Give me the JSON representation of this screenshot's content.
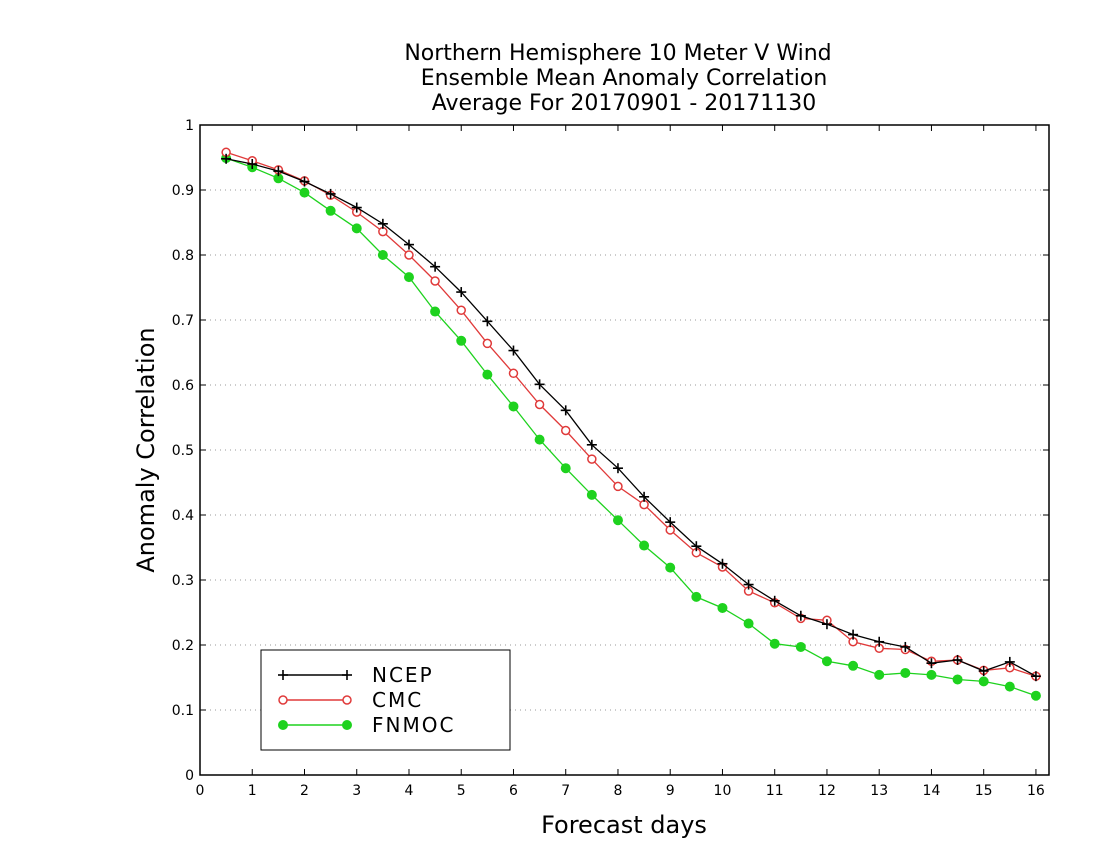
{
  "chart_data": {
    "type": "line",
    "title": [
      "Northern Hemisphere 10 Meter V Wind",
      "Ensemble Mean Anomaly Correlation",
      "Average For 20170901 - 20171130"
    ],
    "xlabel": "Forecast days",
    "ylabel": "Anomaly Correlation",
    "xlim": [
      0,
      16.25
    ],
    "ylim": [
      0,
      1
    ],
    "xticks": [
      0,
      1,
      2,
      3,
      4,
      5,
      6,
      7,
      8,
      9,
      10,
      11,
      12,
      13,
      14,
      15,
      16
    ],
    "yticks": [
      0,
      0.1,
      0.2,
      0.3,
      0.4,
      0.5,
      0.6,
      0.7,
      0.8,
      0.9,
      1
    ],
    "ytick_labels": [
      "0",
      "0.1",
      "0.2",
      "0.3",
      "0.4",
      "0.5",
      "0.6",
      "0.7",
      "0.8",
      "0.9",
      "1"
    ],
    "grid": "horizontal dotted",
    "legend_position": "bottom-left",
    "x": [
      0.5,
      1,
      1.5,
      2,
      2.5,
      3,
      3.5,
      4,
      4.5,
      5,
      5.5,
      6,
      6.5,
      7,
      7.5,
      8,
      8.5,
      9,
      9.5,
      10,
      10.5,
      11,
      11.5,
      12,
      12.5,
      13,
      13.5,
      14,
      14.5,
      15,
      15.5,
      16
    ],
    "series": [
      {
        "name": "NCEP",
        "color": "#000000",
        "marker": "plus",
        "values": [
          0.948,
          0.94,
          0.929,
          0.913,
          0.894,
          0.873,
          0.848,
          0.816,
          0.782,
          0.743,
          0.698,
          0.653,
          0.601,
          0.561,
          0.508,
          0.472,
          0.428,
          0.389,
          0.352,
          0.325,
          0.293,
          0.268,
          0.245,
          0.232,
          0.216,
          0.205,
          0.197,
          0.172,
          0.177,
          0.16,
          0.174,
          0.152
        ]
      },
      {
        "name": "CMC",
        "color": "#e03a3a",
        "marker": "open-circle",
        "values": [
          0.958,
          0.945,
          0.931,
          0.914,
          0.892,
          0.866,
          0.836,
          0.8,
          0.76,
          0.715,
          0.664,
          0.618,
          0.57,
          0.53,
          0.486,
          0.444,
          0.416,
          0.377,
          0.342,
          0.32,
          0.283,
          0.265,
          0.241,
          0.238,
          0.205,
          0.195,
          0.193,
          0.175,
          0.177,
          0.161,
          0.165,
          0.152
        ]
      },
      {
        "name": "FNMOC",
        "color": "#1ed21e",
        "marker": "filled-circle",
        "values": [
          0.949,
          0.935,
          0.918,
          0.896,
          0.868,
          0.841,
          0.8,
          0.766,
          0.713,
          0.668,
          0.616,
          0.567,
          0.516,
          0.472,
          0.431,
          0.392,
          0.353,
          0.319,
          0.274,
          0.257,
          0.233,
          0.202,
          0.197,
          0.175,
          0.168,
          0.154,
          0.157,
          0.154,
          0.147,
          0.144,
          0.136,
          0.122
        ]
      }
    ]
  }
}
